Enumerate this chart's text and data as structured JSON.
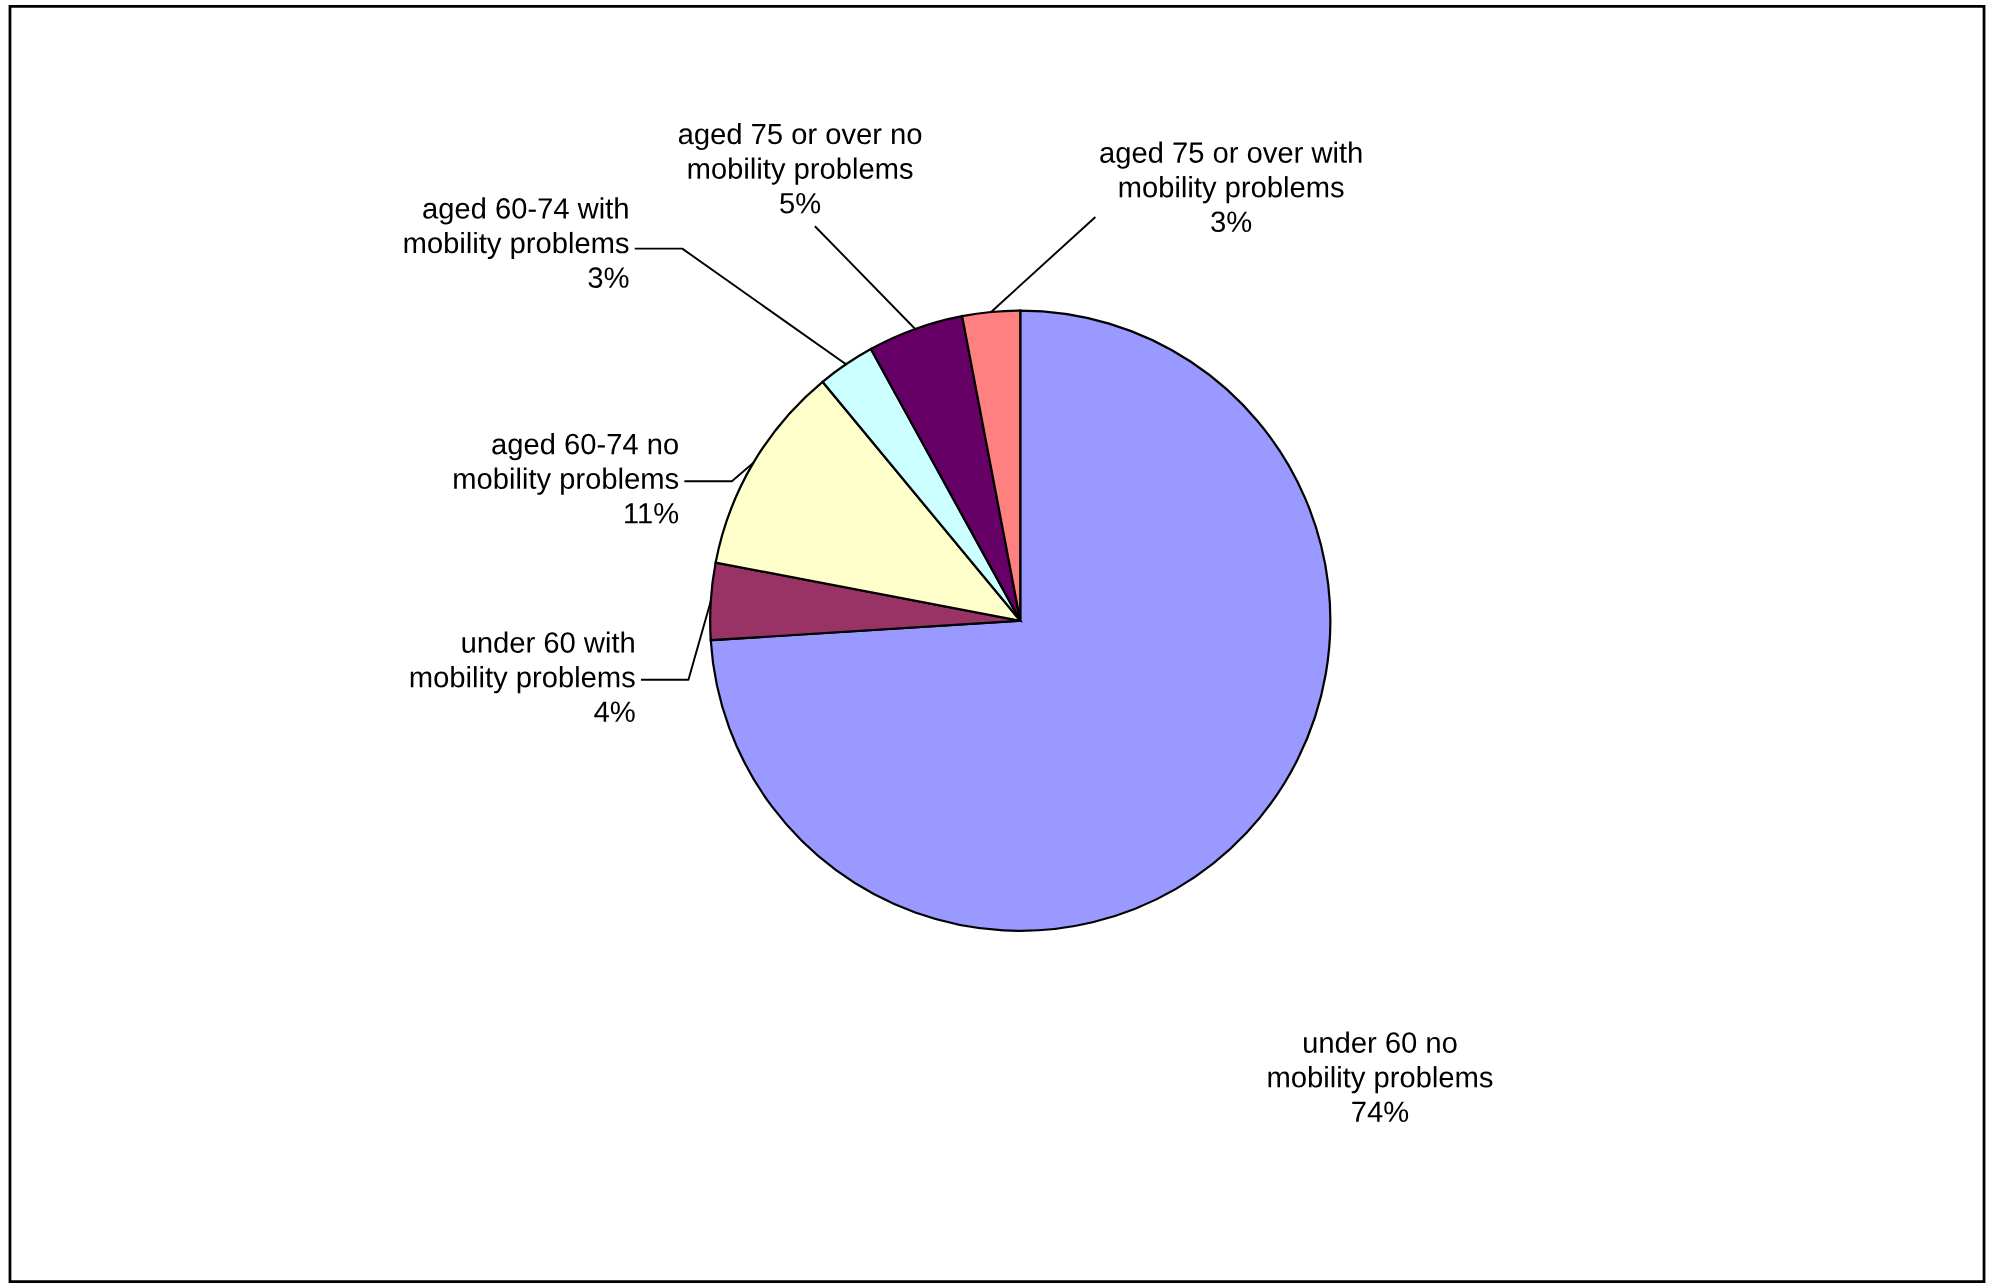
{
  "chart_data": {
    "type": "pie",
    "categories": [
      "under 60 no mobility problems",
      "under 60 with mobility problems",
      "aged 60-74 no mobility problems",
      "aged 60-74 with mobility problems",
      "aged 75 or over no mobility problems",
      "aged 75 or over with mobility problems"
    ],
    "values": [
      74,
      4,
      11,
      3,
      5,
      3
    ],
    "colors": [
      "#9999ff",
      "#993366",
      "#ffffcc",
      "#ccffff",
      "#660066",
      "#ff8080"
    ],
    "value_labels": [
      "74%",
      "4%",
      "11%",
      "3%",
      "5%",
      "3%"
    ],
    "legend": false
  }
}
